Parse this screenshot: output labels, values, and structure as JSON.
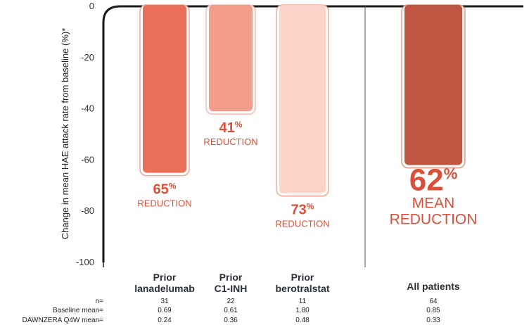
{
  "chart_data": {
    "type": "bar",
    "ylabel": "Change in mean HAE attack rate from baseline (%)*",
    "ylim": [
      -100,
      0
    ],
    "yticks": [
      0,
      -20,
      -40,
      -60,
      -80,
      -100
    ],
    "categories": [
      {
        "line1": "Prior",
        "line2": "lanadelumab"
      },
      {
        "line1": "Prior",
        "line2": "C1-INH"
      },
      {
        "line1": "Prior",
        "line2": "berotralstat"
      },
      {
        "line1": "All patients",
        "line2": ""
      }
    ],
    "values": [
      -65,
      -41,
      -73,
      -62
    ],
    "bar_colors": [
      "#ea6f58",
      "#f29c8b",
      "#fcd5ca",
      "#bf5641"
    ],
    "bar_border_colors": [
      "#f3a596",
      "#f6bdb0",
      "#f3a596",
      "#e29a8b"
    ],
    "value_labels": [
      {
        "pct": "65",
        "sym": "%",
        "line1": "REDUCTION",
        "line2": ""
      },
      {
        "pct": "41",
        "sym": "%",
        "line1": "REDUCTION",
        "line2": ""
      },
      {
        "pct": "73",
        "sym": "%",
        "line1": "REDUCTION",
        "line2": ""
      },
      {
        "pct": "62",
        "sym": "%",
        "line1": "MEAN",
        "line2": "REDUCTION"
      }
    ],
    "table": {
      "row_labels": [
        "n=",
        "Baseline mean=",
        "DAWNZERA Q4W mean="
      ],
      "columns": [
        [
          "31",
          "0.69",
          "0.24"
        ],
        [
          "22",
          "0.61",
          "0.36"
        ],
        [
          "11",
          "1.80",
          "0.48"
        ],
        [
          "64",
          "0.85",
          "0.33"
        ]
      ]
    },
    "colors": {
      "accent": "#d9503a",
      "axis": "#1a1a1a",
      "divider": "#555555"
    }
  }
}
